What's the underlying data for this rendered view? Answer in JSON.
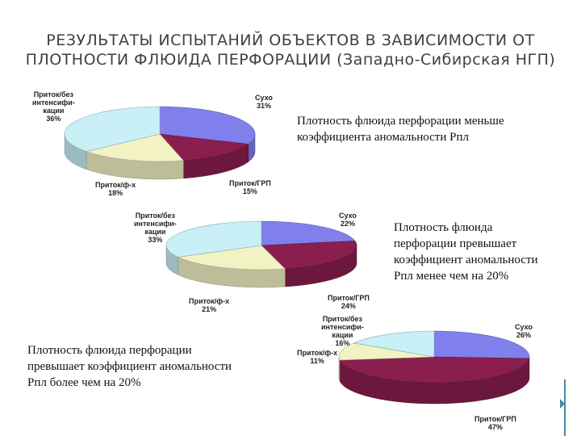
{
  "title": {
    "line1": "РЕЗУЛЬТАТЫ ИСПЫТАНИЙ ОБЪЕКТОВ В ЗАВИСИМОСТИ ОТ",
    "line2": "ПЛОТНОСТИ ФЛЮИДА ПЕРФОРАЦИИ (Западно-Сибирская НГП)"
  },
  "notes": [
    {
      "lines": [
        "Плотность флюида перфорации меньше",
        "коэффициента аномальности Рпл"
      ]
    },
    {
      "lines": [
        "Плотность флюида",
        "перфорации превышает",
        "коэффициент аномальности",
        "Рпл менее чем на 20%"
      ]
    },
    {
      "lines": [
        "Плотность флюида перфорации",
        "превышает коэффициент аномальности",
        "Рпл более чем на 20%"
      ]
    }
  ],
  "colors": {
    "Сухо": "#8080ec",
    "Приток/ГРП": "#8a1f4f",
    "Приток/ф-х": "#f2f2c4",
    "Приток/без интенсификации": "#c8f0f6",
    "accent": "#4a8ba2"
  },
  "chart_data": [
    {
      "type": "pie",
      "categories": [
        "Сухо",
        "Приток/ГРП",
        "Приток/ф-х",
        "Приток/без интенсификации"
      ],
      "values": [
        31,
        15,
        18,
        36
      ],
      "labels": {
        "Сухо": [
          "Сухо",
          "31%"
        ],
        "Приток/ГРП": [
          "Приток/ГРП",
          "15%"
        ],
        "Приток/ф-х": [
          "Приток/ф-х",
          "18%"
        ],
        "Приток/без интенсификации": [
          "Приток/без",
          "интенсифи-",
          "кации",
          "36%"
        ]
      }
    },
    {
      "type": "pie",
      "categories": [
        "Сухо",
        "Приток/ГРП",
        "Приток/ф-х",
        "Приток/без интенсификации"
      ],
      "values": [
        22,
        24,
        21,
        33
      ],
      "labels": {
        "Сухо": [
          "Сухо",
          "22%"
        ],
        "Приток/ГРП": [
          "Приток/ГРП",
          "24%"
        ],
        "Приток/ф-х": [
          "Приток/ф-х",
          "21%"
        ],
        "Приток/без интенсификации": [
          "Приток/без",
          "интенсифи-",
          "кации",
          "33%"
        ]
      }
    },
    {
      "type": "pie",
      "categories": [
        "Сухо",
        "Приток/ГРП",
        "Приток/ф-х",
        "Приток/без интенсификации"
      ],
      "values": [
        26,
        47,
        11,
        16
      ],
      "labels": {
        "Сухо": [
          "Сухо",
          "26%"
        ],
        "Приток/ГРП": [
          "Приток/ГРП",
          "47%"
        ],
        "Приток/ф-х": [
          "Приток/ф-х",
          "11%"
        ],
        "Приток/без интенсификации": [
          "Приток/без",
          "интенсифи-",
          "кации",
          "16%"
        ]
      }
    }
  ]
}
